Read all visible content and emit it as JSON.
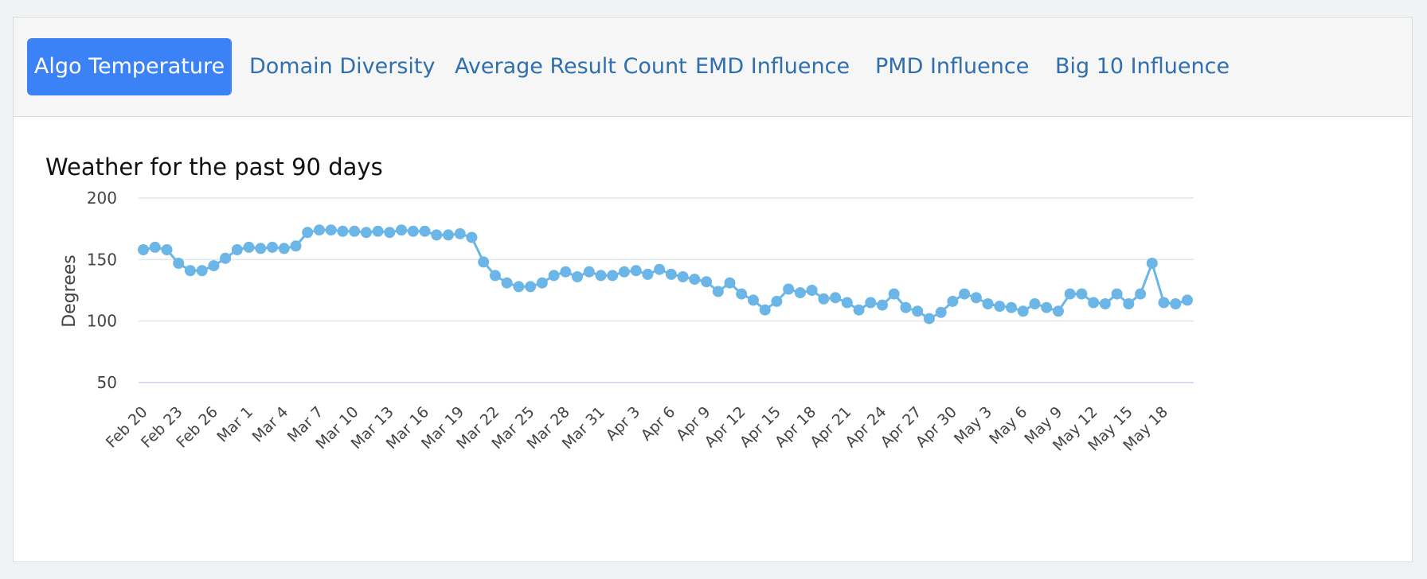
{
  "tabs": [
    {
      "label": "Algo Temperature",
      "active": true
    },
    {
      "label": "Domain Diversity",
      "active": false
    },
    {
      "label": "Average Result Count",
      "active": false
    },
    {
      "label": "EMD Influence",
      "active": false
    },
    {
      "label": "PMD Influence",
      "active": false
    },
    {
      "label": "Big 10 Influence",
      "active": false
    }
  ],
  "colors": {
    "active_tab": "#3b82f6",
    "tab_text": "#2f6fad",
    "series": "#6bb6e6"
  },
  "chart_data": {
    "type": "line",
    "title": "Weather for the past 90 days",
    "ylabel": "Degrees",
    "xlabel": "",
    "ylim": [
      50,
      200
    ],
    "yticks": [
      50,
      100,
      150,
      200
    ],
    "grid": true,
    "x_tick_labels": [
      "Feb 20",
      "Feb 23",
      "Feb 26",
      "Mar 1",
      "Mar 4",
      "Mar 7",
      "Mar 10",
      "Mar 13",
      "Mar 16",
      "Mar 19",
      "Mar 22",
      "Mar 25",
      "Mar 28",
      "Mar 31",
      "Apr 3",
      "Apr 6",
      "Apr 9",
      "Apr 12",
      "Apr 15",
      "Apr 18",
      "Apr 21",
      "Apr 24",
      "Apr 27",
      "Apr 30",
      "May 3",
      "May 6",
      "May 9",
      "May 12",
      "May 15",
      "May 18"
    ],
    "series": [
      {
        "values": [
          158,
          160,
          158,
          147,
          141,
          141,
          145,
          151,
          158,
          160,
          159,
          160,
          159,
          161,
          172,
          174,
          174,
          173,
          173,
          172,
          173,
          172,
          174,
          173,
          173,
          170,
          170,
          171,
          168,
          148,
          137,
          131,
          128,
          128,
          131,
          137,
          140,
          136,
          140,
          137,
          137,
          140,
          141,
          138,
          142,
          138,
          136,
          134,
          132,
          124,
          131,
          122,
          117,
          109,
          116,
          126,
          123,
          125,
          118,
          119,
          115,
          109,
          115,
          113,
          122,
          111,
          108,
          102,
          107,
          116,
          122,
          119,
          114,
          112,
          111,
          108,
          114,
          111,
          108,
          122,
          122,
          115,
          114,
          122,
          114,
          122,
          147,
          115,
          114,
          117
        ]
      }
    ]
  }
}
